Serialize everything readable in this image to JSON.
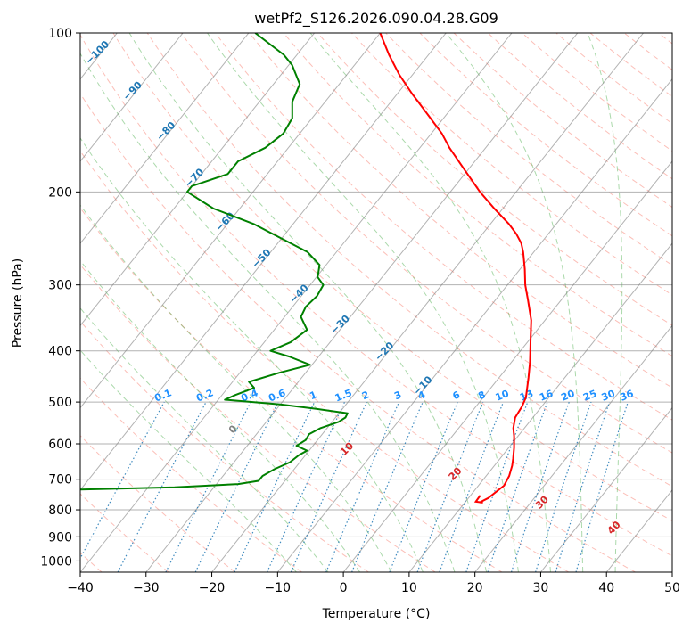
{
  "chart_data": {
    "type": "line",
    "subtype": "skew-t log-p diagram",
    "title": "wetPf2_S126.2026.090.04.28.G09",
    "xlabel": "Temperature (°C)",
    "ylabel": "Pressure (hPa)",
    "xlim": [
      -40,
      50
    ],
    "ylim": [
      1050,
      100
    ],
    "yscale": "log",
    "grid": true,
    "x_ticks": [
      "−40",
      "−30",
      "−20",
      "−10",
      "0",
      "10",
      "20",
      "30",
      "40",
      "50"
    ],
    "x_tick_values": [
      -40,
      -30,
      -20,
      -10,
      0,
      10,
      20,
      30,
      40,
      50
    ],
    "y_ticks": [
      "100",
      "200",
      "300",
      "400",
      "500",
      "600",
      "700",
      "800",
      "900",
      "1000"
    ],
    "y_tick_values": [
      100,
      200,
      300,
      400,
      500,
      600,
      700,
      800,
      900,
      1000
    ],
    "series": [
      {
        "role": "temperature",
        "color": "#ff0000",
        "pressure": [
          775,
          760,
          720,
          690,
          660,
          640,
          610,
          580,
          560,
          535,
          510,
          490,
          450,
          420,
          380,
          350,
          320,
          300,
          280,
          260,
          250,
          240,
          230,
          215,
          200,
          180,
          165,
          155,
          145,
          130,
          120,
          110,
          100
        ],
        "temperature": [
          12.2,
          13.0,
          13.9,
          13.5,
          12.7,
          12.0,
          10.8,
          9.4,
          8.3,
          7.3,
          7.0,
          6.5,
          4.5,
          2.8,
          0.1,
          -2.1,
          -5.1,
          -7.3,
          -9.3,
          -11.6,
          -13.0,
          -14.9,
          -17.2,
          -21.3,
          -25.5,
          -31.0,
          -35.5,
          -38.4,
          -42.0,
          -47.9,
          -52.0,
          -56.0,
          -60.0
        ]
      },
      {
        "role": "dewpoint",
        "color": "#008000",
        "pressure": [
          752,
          745,
          735,
          725,
          715,
          705,
          690,
          670,
          650,
          630,
          618,
          605,
          590,
          575,
          560,
          545,
          535,
          525,
          515,
          505,
          495,
          485,
          470,
          458,
          440,
          425,
          410,
          400,
          385,
          365,
          345,
          330,
          315,
          300,
          290,
          275,
          260,
          245,
          230,
          215,
          200,
          195,
          185,
          175,
          165,
          155,
          145,
          135,
          125,
          115,
          110,
          100
        ],
        "temperature": [
          -82.0,
          -70.0,
          -55.0,
          -36.0,
          -26.7,
          -24.0,
          -24.0,
          -23.0,
          -21.5,
          -21.0,
          -20.3,
          -22.5,
          -21.8,
          -22.0,
          -21.0,
          -19.0,
          -18.5,
          -18.7,
          -24.0,
          -30.0,
          -39.0,
          -38.0,
          -36.0,
          -37.5,
          -34.0,
          -30.3,
          -34.5,
          -38.0,
          -36.0,
          -35.0,
          -37.5,
          -38.0,
          -37.6,
          -38.0,
          -39.8,
          -41.0,
          -44.4,
          -50.0,
          -56.0,
          -64.0,
          -70.0,
          -70.0,
          -66.0,
          -66.0,
          -63.5,
          -62.5,
          -63.0,
          -65.0,
          -66.0,
          -69.5,
          -72.0,
          -79.0
        ]
      }
    ],
    "dry_adiabat_labels": [
      "−100",
      "−90",
      "−80",
      "−70",
      "−60",
      "−50",
      "−40",
      "−30",
      "−20",
      "−10"
    ],
    "dry_adiabat_values": [
      -100,
      -90,
      -80,
      -70,
      -60,
      -50,
      -40,
      -30,
      -20,
      -10
    ],
    "moist_adiabat_labels": [
      "0",
      "10",
      "20",
      "30",
      "40"
    ],
    "moist_adiabat_values": [
      0,
      10,
      20,
      30,
      40
    ],
    "mixing_ratio_labels": [
      "0.1",
      "0.2",
      "0.4",
      "0.6",
      "1",
      "1.5",
      "2",
      "3",
      "4",
      "6",
      "8",
      "10",
      "13",
      "16",
      "20",
      "25",
      "30",
      "36"
    ],
    "mixing_ratio_values": [
      0.1,
      0.2,
      0.4,
      0.6,
      1,
      1.5,
      2,
      3,
      4,
      6,
      8,
      10,
      13,
      16,
      20,
      25,
      30,
      36
    ],
    "colors": {
      "temperature": "#ff0000",
      "dewpoint": "#008000",
      "dry_adiabats": "#fa8072",
      "moist_adiabats": "#2ca02c",
      "mixing_ratio": "#1f77b4",
      "isotherms": "#808080",
      "dry_adiabat_labels": "#1f77b4",
      "moist_adiabat_labels": "#d62728",
      "mixing_ratio_labels": "#1e90ff"
    }
  }
}
